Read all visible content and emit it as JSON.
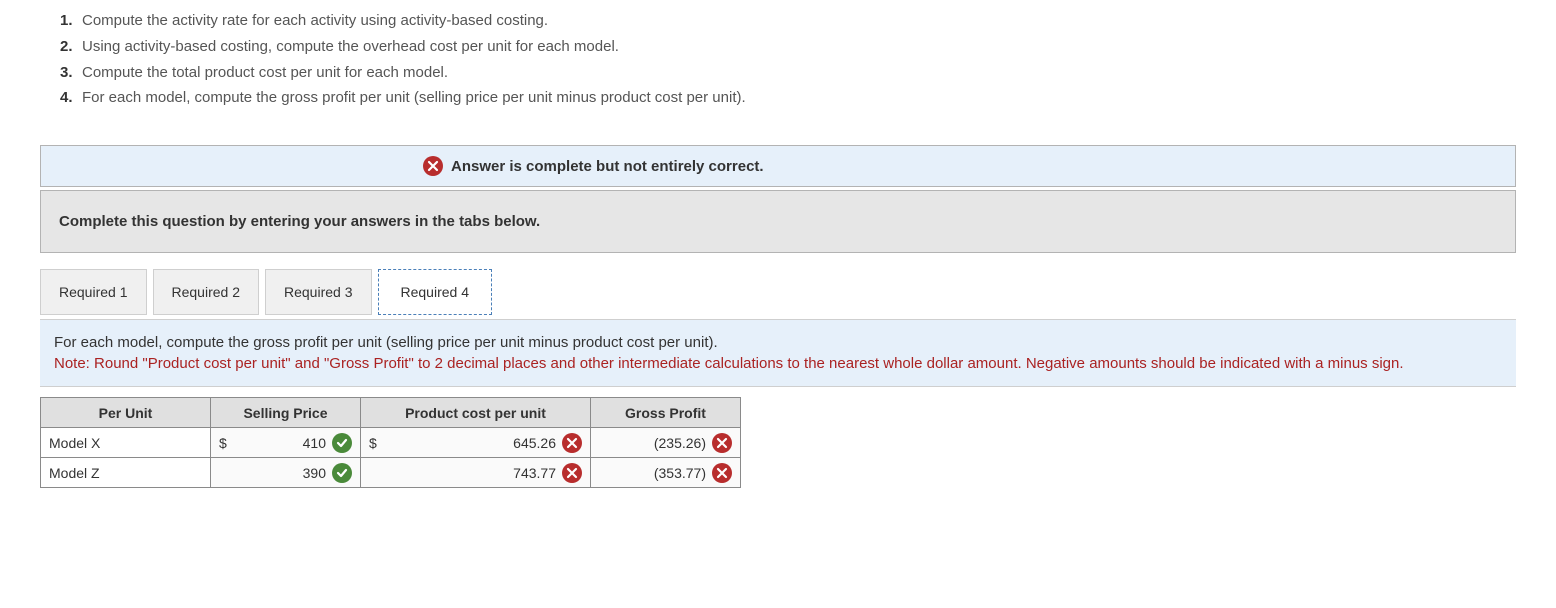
{
  "questions": [
    "Compute the activity rate for each activity using activity-based costing.",
    "Using activity-based costing, compute the overhead cost per unit for each model.",
    "Compute the total product cost per unit for each model.",
    "For each model, compute the gross profit per unit (selling price per unit minus product cost per unit)."
  ],
  "status_banner": "Answer is complete but not entirely correct.",
  "instruction": "Complete this question by entering your answers in the tabs below.",
  "tabs": {
    "items": [
      "Required 1",
      "Required 2",
      "Required 3",
      "Required 4"
    ],
    "active_index": 3
  },
  "panel": {
    "main": "For each model, compute the gross profit per unit (selling price per unit minus product cost per unit).",
    "note": "Note: Round \"Product cost per unit\"  and \"Gross Profit\" to 2 decimal places and other intermediate calculations to the nearest whole dollar amount. Negative amounts should be indicated with a minus sign."
  },
  "table": {
    "headers": {
      "per_unit": "Per Unit",
      "selling": "Selling Price",
      "product": "Product cost per unit",
      "gross": "Gross Profit"
    },
    "rows": [
      {
        "label": "Model X",
        "selling": {
          "currency": "$",
          "value": "410",
          "status": "correct"
        },
        "product": {
          "currency": "$",
          "value": "645.26",
          "status": "wrong"
        },
        "gross": {
          "currency": "",
          "value": "(235.26)",
          "status": "wrong"
        }
      },
      {
        "label": "Model Z",
        "selling": {
          "currency": "",
          "value": "390",
          "status": "correct"
        },
        "product": {
          "currency": "",
          "value": "743.77",
          "status": "wrong"
        },
        "gross": {
          "currency": "",
          "value": "(353.77)",
          "status": "wrong"
        }
      }
    ]
  },
  "colors": {
    "banner_bg": "#e6f0fa",
    "instruction_bg": "#e6e6e6",
    "note_text": "#aa2222",
    "correct": "#4a8a3a",
    "wrong": "#b82d2d"
  }
}
